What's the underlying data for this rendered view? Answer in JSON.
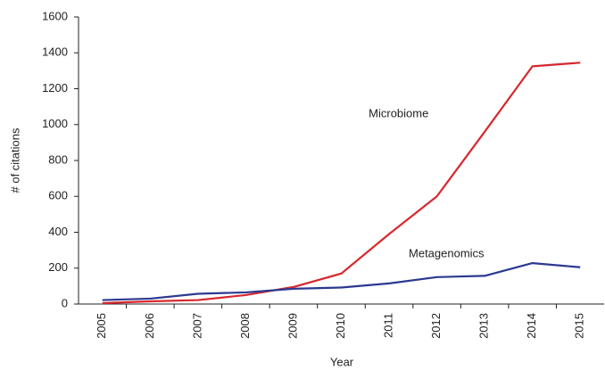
{
  "chart_data": {
    "type": "line",
    "x_label": "Year",
    "y_label": "# of citations",
    "categories": [
      "2005",
      "2006",
      "2007",
      "2008",
      "2009",
      "2010",
      "2011",
      "2012",
      "2013",
      "2014",
      "2015"
    ],
    "series": [
      {
        "name": "Microbiome",
        "color": "#d7272e",
        "values": [
          5,
          15,
          22,
          50,
          95,
          170,
          390,
          600,
          960,
          1325,
          1345
        ]
      },
      {
        "name": "Metagenomics",
        "color": "#2b3990",
        "values": [
          22,
          30,
          57,
          65,
          85,
          92,
          115,
          150,
          157,
          228,
          205
        ]
      }
    ],
    "ylim": [
      0,
      1600
    ],
    "yticks": [
      0,
      200,
      400,
      600,
      800,
      1000,
      1200,
      1400,
      1600
    ],
    "grid": false
  }
}
